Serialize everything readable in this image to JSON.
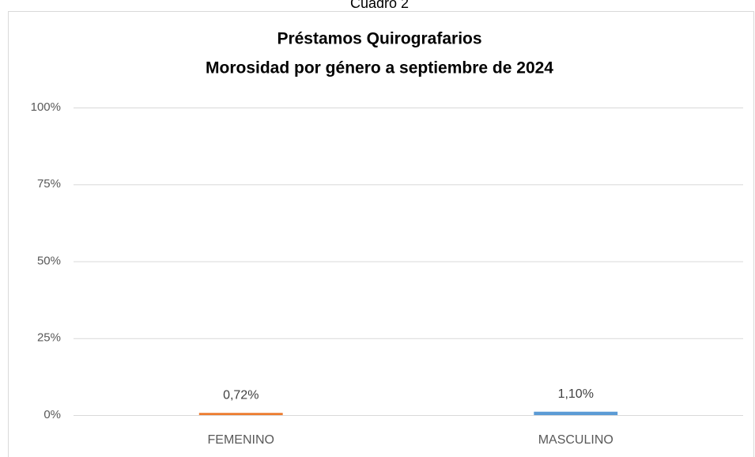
{
  "chart_data": {
    "type": "bar",
    "caption": "Cuadro 2",
    "title": "Préstamos Quirografarios",
    "subtitle": "Morosidad por género a septiembre de 2024",
    "categories": [
      "FEMENINO",
      "MASCULINO"
    ],
    "values": [
      0.72,
      1.1
    ],
    "value_labels": [
      "0,72%",
      "1,10%"
    ],
    "colors": [
      "#ED7D31",
      "#5B9BD5"
    ],
    "ylim": [
      0,
      100
    ],
    "yticks": [
      {
        "value": 0,
        "label": "0%"
      },
      {
        "value": 25,
        "label": "25%"
      },
      {
        "value": 50,
        "label": "50%"
      },
      {
        "value": 75,
        "label": "75%"
      },
      {
        "value": 100,
        "label": "100%"
      }
    ],
    "grid": true
  }
}
